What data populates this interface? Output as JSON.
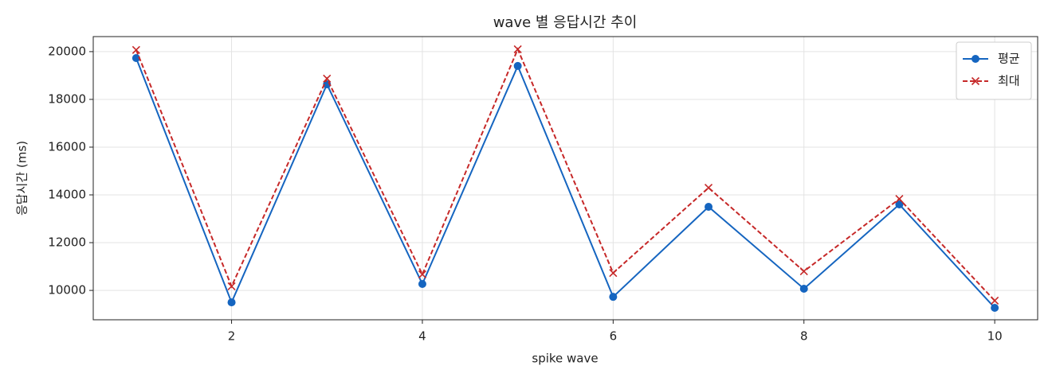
{
  "chart_data": {
    "type": "line",
    "title": "wave 별 응답시간 추이",
    "x_label": "spike wave",
    "y_label": "응답시간 (ms)",
    "x": [
      1,
      2,
      3,
      4,
      5,
      6,
      7,
      8,
      9,
      10
    ],
    "series": [
      {
        "name": "평균",
        "color": "#1565c0",
        "marker": "circle",
        "dashed": false,
        "values": [
          19730,
          9500,
          18630,
          10270,
          19400,
          9730,
          13500,
          10070,
          13600,
          9270
        ]
      },
      {
        "name": "최대",
        "color": "#c62828",
        "marker": "x",
        "dashed": true,
        "values": [
          20070,
          10170,
          18870,
          10670,
          20100,
          10730,
          14300,
          10800,
          13830,
          9570
        ]
      }
    ],
    "xlim": [
      0.55,
      10.45
    ],
    "xticks": [
      2,
      4,
      6,
      8,
      10
    ],
    "ylim": [
      8770,
      20630
    ],
    "yticks": [
      10000,
      12000,
      14000,
      16000,
      18000,
      20000
    ],
    "grid": true,
    "legend": "upper right"
  }
}
